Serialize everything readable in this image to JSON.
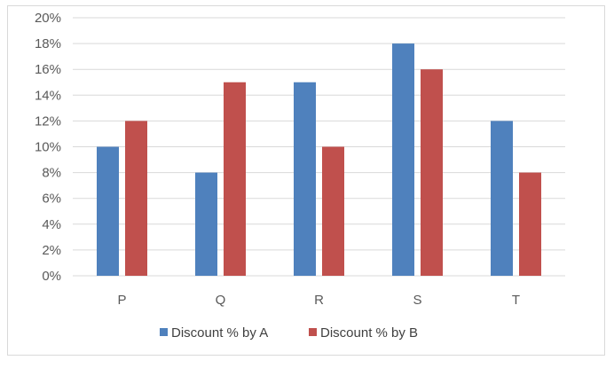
{
  "chart_data": {
    "type": "bar",
    "categories": [
      "P",
      "Q",
      "R",
      "S",
      "T"
    ],
    "series": [
      {
        "name": "Discount % by A",
        "values": [
          10,
          8,
          15,
          18,
          12
        ],
        "color": "#4F81BD"
      },
      {
        "name": "Discount % by B",
        "values": [
          12,
          15,
          10,
          16,
          8
        ],
        "color": "#C0504D"
      }
    ],
    "y_ticks": [
      "0%",
      "2%",
      "4%",
      "6%",
      "8%",
      "10%",
      "12%",
      "14%",
      "16%",
      "18%",
      "20%"
    ],
    "ylim": [
      0,
      20
    ],
    "grid": true,
    "legend_position": "bottom"
  }
}
